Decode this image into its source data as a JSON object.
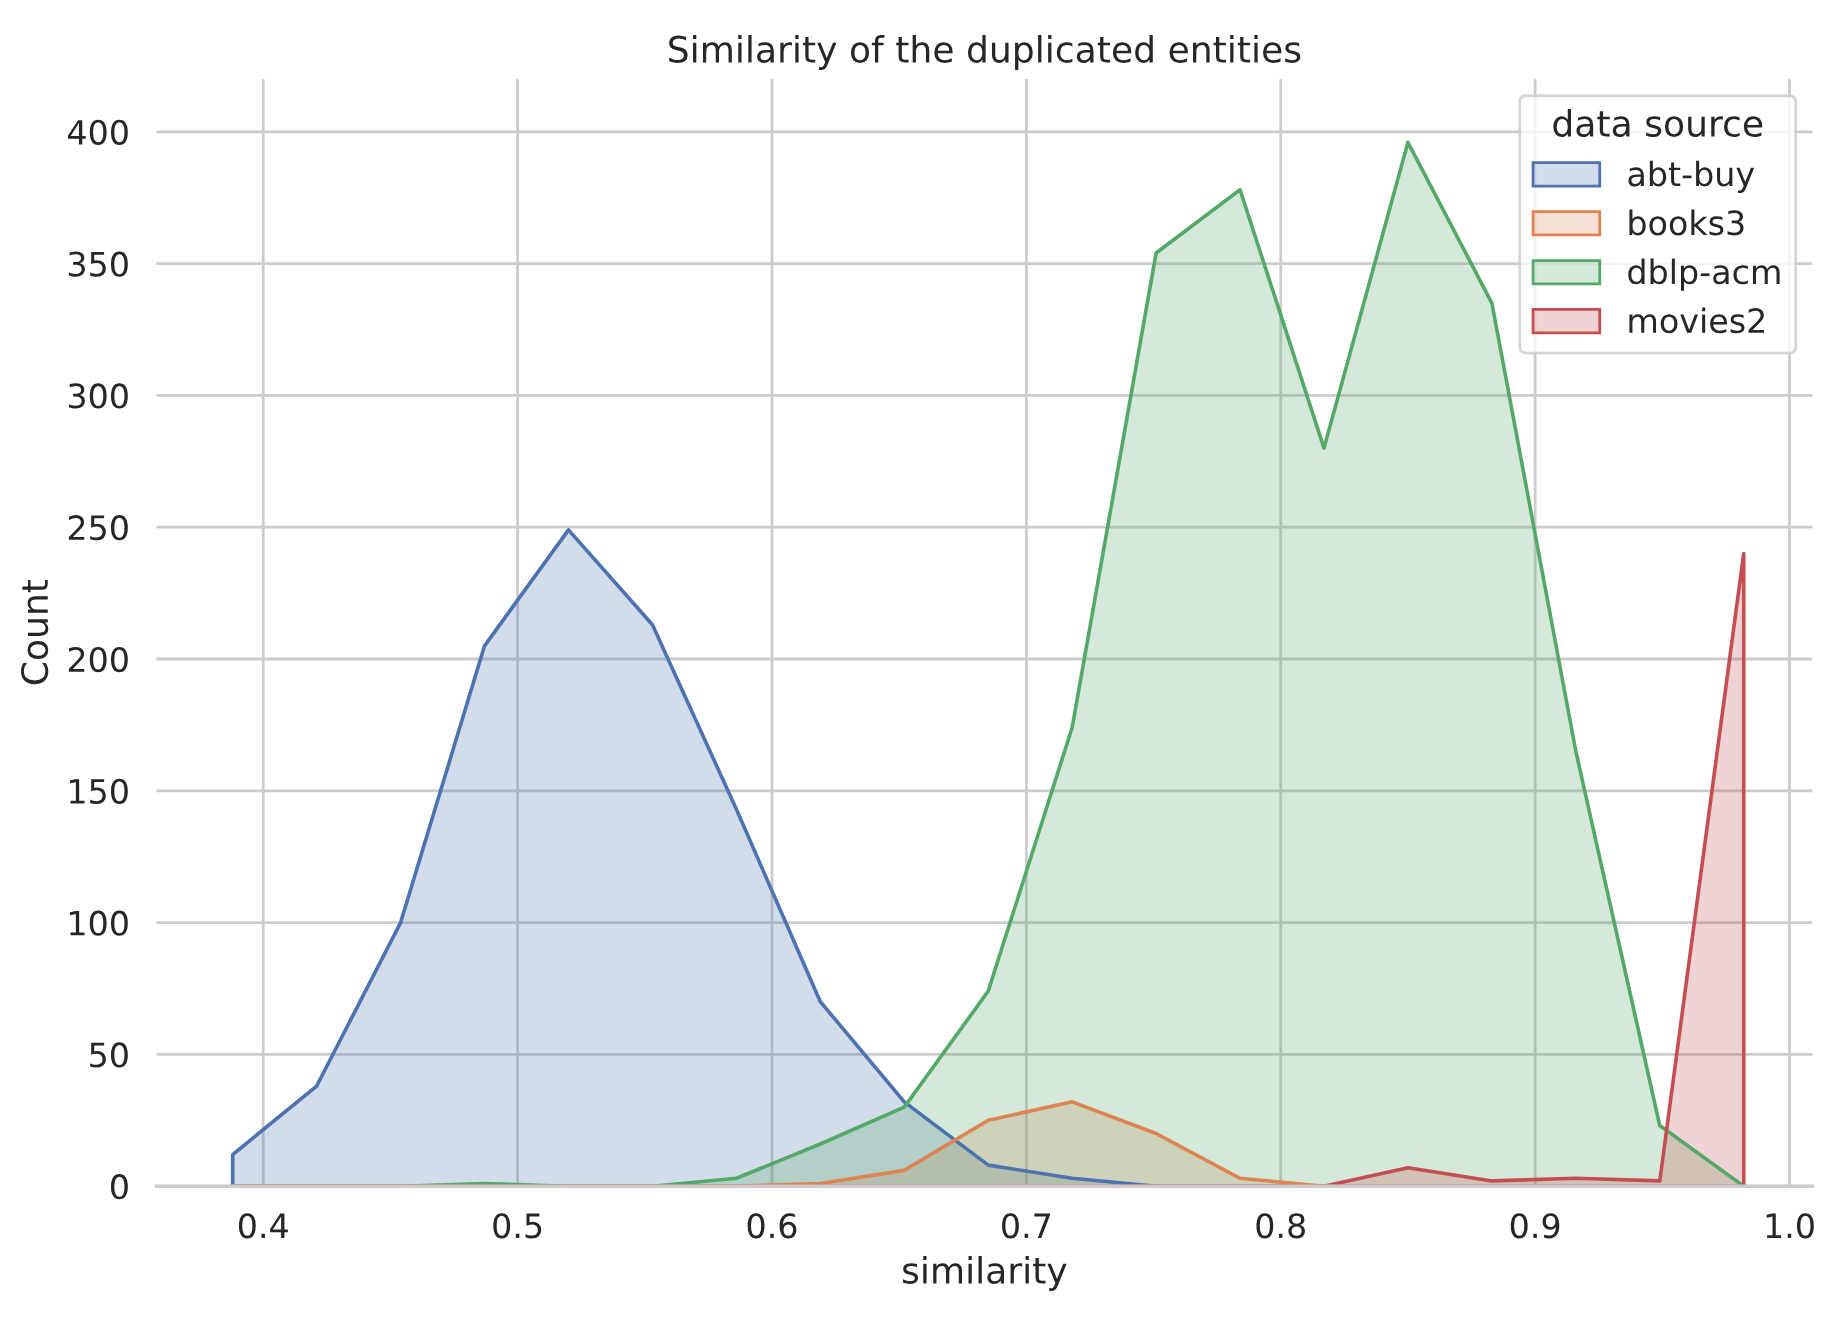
{
  "chart_data": {
    "type": "area",
    "title": "Similarity of the duplicated entities",
    "xlabel": "similarity",
    "ylabel": "Count",
    "legend_title": "data source",
    "x": [
      0.388,
      0.421,
      0.454,
      0.487,
      0.52,
      0.553,
      0.586,
      0.619,
      0.652,
      0.685,
      0.718,
      0.751,
      0.784,
      0.817,
      0.85,
      0.883,
      0.916,
      0.949,
      0.982
    ],
    "series": [
      {
        "name": "abt-buy",
        "color": "#4c72b0",
        "values": [
          12,
          38,
          100,
          205,
          249,
          213,
          143,
          70,
          32,
          8,
          3,
          0,
          0,
          0,
          0,
          0,
          0,
          0,
          0
        ]
      },
      {
        "name": "books3",
        "color": "#dd8452",
        "values": [
          0,
          0,
          0,
          0,
          0,
          0,
          0,
          1,
          6,
          25,
          32,
          20,
          3,
          0,
          0,
          0,
          0,
          0,
          0
        ]
      },
      {
        "name": "dblp-acm",
        "color": "#55a868",
        "values": [
          0,
          0,
          0,
          1,
          0,
          0,
          3,
          16,
          30,
          74,
          174,
          354,
          378,
          280,
          396,
          335,
          165,
          23,
          0
        ]
      },
      {
        "name": "movies2",
        "color": "#c44e52",
        "values": [
          0,
          0,
          0,
          0,
          0,
          0,
          0,
          0,
          0,
          0,
          0,
          0,
          0,
          0,
          7,
          2,
          3,
          2,
          240
        ]
      }
    ],
    "xlim": [
      0.358,
      1.009
    ],
    "ylim": [
      0,
      420
    ],
    "xticks": [
      {
        "value": 0.4,
        "label": "0.4"
      },
      {
        "value": 0.5,
        "label": "0.5"
      },
      {
        "value": 0.6,
        "label": "0.6"
      },
      {
        "value": 0.7,
        "label": "0.7"
      },
      {
        "value": 0.8,
        "label": "0.8"
      },
      {
        "value": 0.9,
        "label": "0.9"
      },
      {
        "value": 1.0,
        "label": "1.0"
      }
    ],
    "yticks": [
      0,
      50,
      100,
      150,
      200,
      250,
      300,
      350,
      400
    ],
    "grid": true,
    "legend": "top right"
  }
}
